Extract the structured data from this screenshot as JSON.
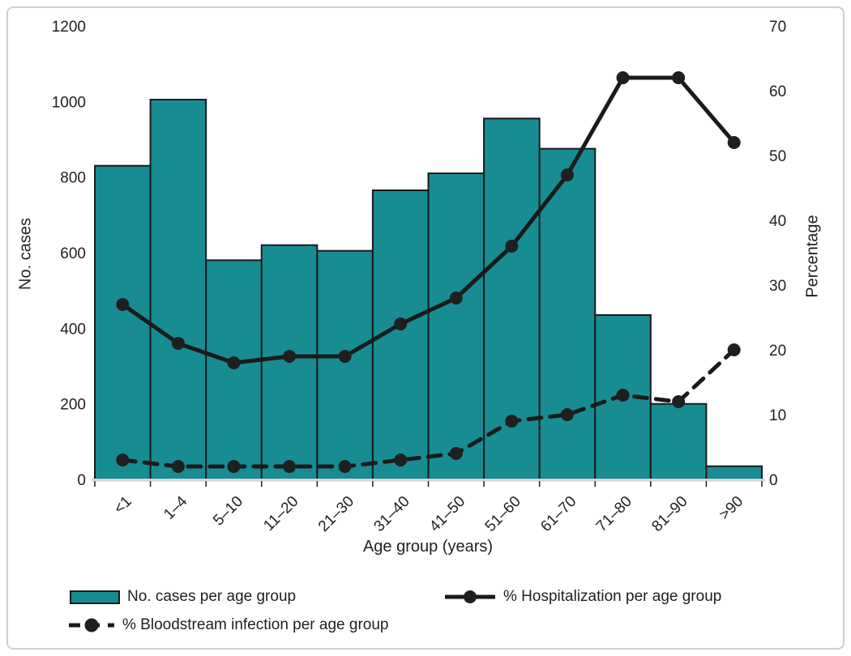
{
  "chart_data": {
    "type": "bar",
    "subtype": "combo-bar-lines",
    "categories": [
      "<1",
      "1–4",
      "5–10",
      "11–20",
      "21–30",
      "31–40",
      "41–50",
      "51–60",
      "61–70",
      "71–80",
      "81–90",
      ">90"
    ],
    "bar_series": {
      "name": "No. cases per age group",
      "values": [
        830,
        1005,
        580,
        620,
        605,
        765,
        810,
        955,
        875,
        435,
        200,
        35
      ],
      "color": "#178C92",
      "outline": "#1a1a1a"
    },
    "line_series": [
      {
        "name": "% Hospitalization per age group",
        "style": "solid",
        "values": [
          27,
          21,
          18,
          19,
          19,
          24,
          28,
          36,
          47,
          62,
          62,
          52
        ]
      },
      {
        "name": "% Bloodstream infection per age group",
        "style": "dashed",
        "values": [
          3,
          2,
          2,
          2,
          2,
          3,
          4,
          9,
          10,
          13,
          12,
          20
        ]
      }
    ],
    "left_axis": {
      "label": "No. cases",
      "min": 0,
      "max": 1200,
      "step": 200
    },
    "right_axis": {
      "label": "Percentage",
      "min": 0,
      "max": 70,
      "step": 10
    },
    "xlabel": "Age group (years)",
    "grid": false,
    "legend_position": "bottom",
    "line_color": "#1a1a1a",
    "baseline_color": "#d3d6d9"
  }
}
